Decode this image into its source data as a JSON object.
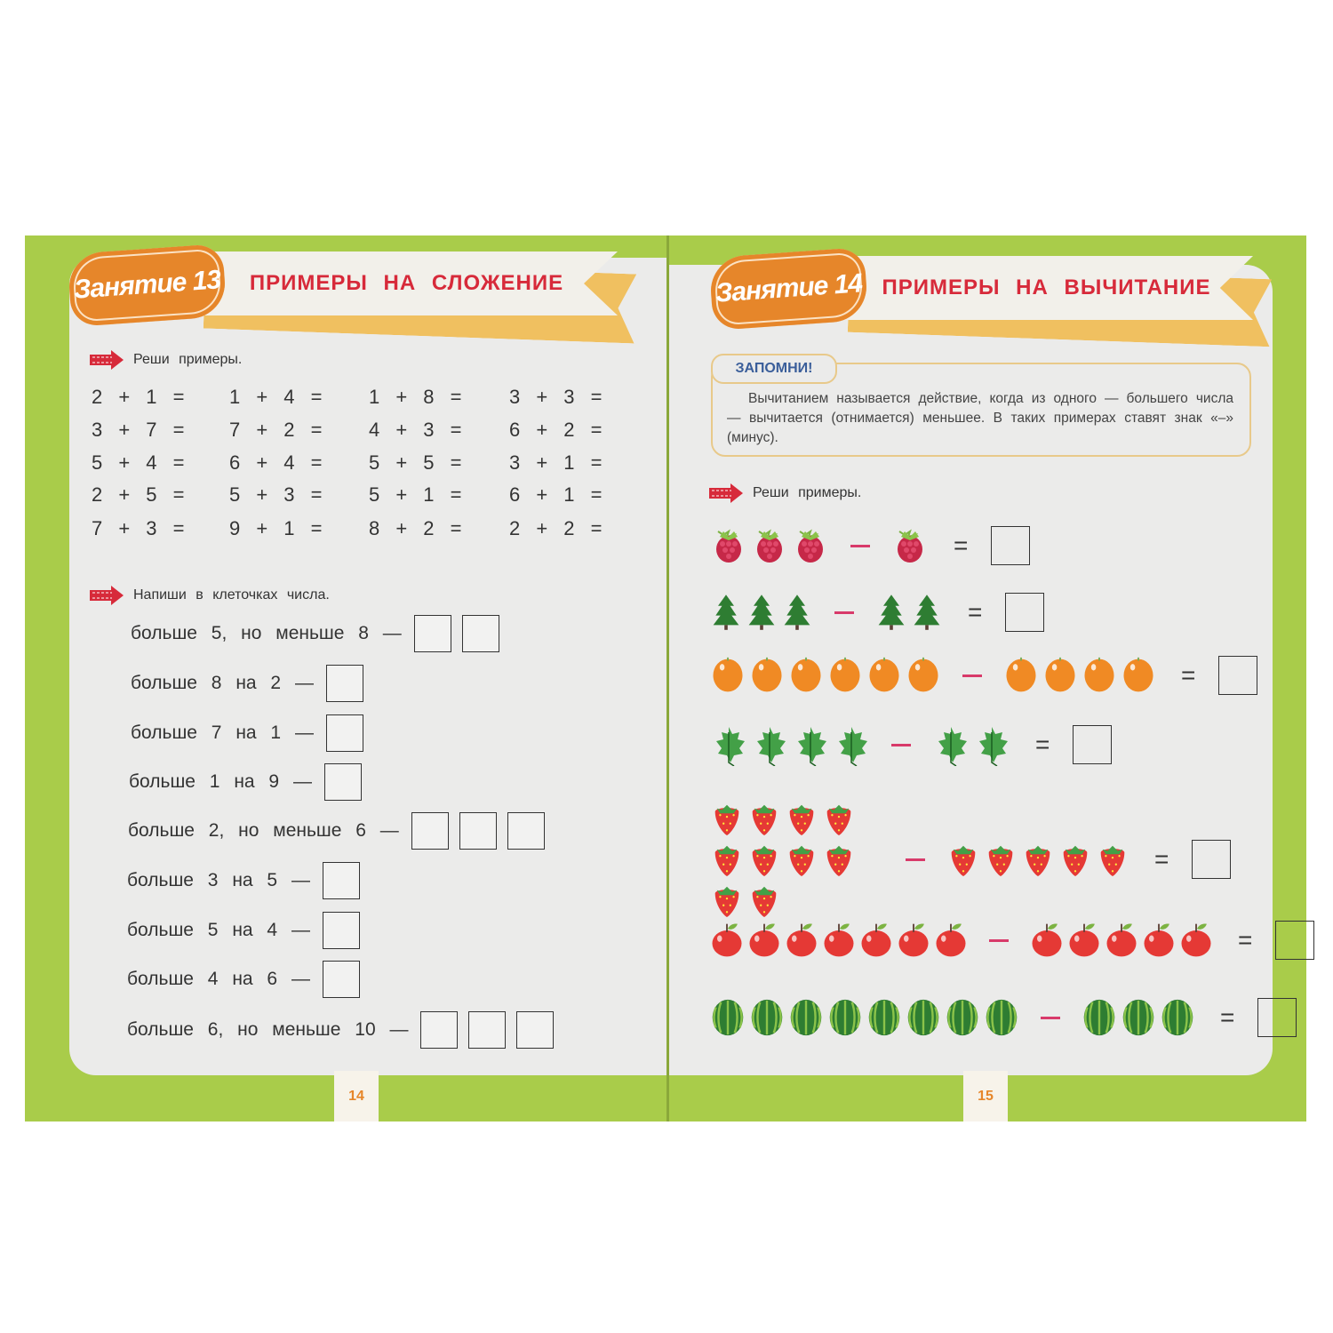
{
  "left_page": {
    "lesson": "Занятие 13",
    "title": "ПРИМЕРЫ НА СЛОЖЕНИЕ",
    "task1": "Реши примеры.",
    "equations": [
      [
        "2 + 1 =",
        "3 + 7 =",
        "5 + 4 =",
        "2 + 5 =",
        "7 + 3 ="
      ],
      [
        "1 + 4 =",
        "7 + 2 =",
        "6 + 4 =",
        "5 + 3 =",
        "9 + 1 ="
      ],
      [
        "1 + 8 =",
        "4 + 3 =",
        "5 + 5 =",
        "5 + 1 =",
        "8 + 2 ="
      ],
      [
        "3 + 3 =",
        "6 + 2 =",
        "3 + 1 =",
        "6 + 1 =",
        "2 + 2 ="
      ]
    ],
    "task2": "Напиши в клеточках числа.",
    "fill_rows": [
      {
        "text": "больше 5, но меньше 8 —",
        "boxes": 2
      },
      {
        "text": "больше 8 на 2 —",
        "boxes": 1
      },
      {
        "text": "больше 7 на 1 —",
        "boxes": 1
      },
      {
        "text": "больше 1 на 9 —",
        "boxes": 1
      },
      {
        "text": "больше 2, но меньше 6 —",
        "boxes": 3
      },
      {
        "text": "больше 3 на 5 —",
        "boxes": 1
      },
      {
        "text": "больше 5 на 4 —",
        "boxes": 1
      },
      {
        "text": "больше 4 на 6 —",
        "boxes": 1
      },
      {
        "text": "больше 6, но меньше 10 —",
        "boxes": 3
      }
    ],
    "page_number": "14"
  },
  "right_page": {
    "lesson": "Занятие 14",
    "title": "ПРИМЕРЫ НА ВЫЧИТАНИЕ",
    "remember_label": "ЗАПОМНИ!",
    "remember_text": "Вычитанием называется действие, когда из одного — большего числа — вычитается (отнимается) меньшее. В таких примерах ставят знак «–» (минус).",
    "task": "Реши примеры.",
    "equals_sign": "=",
    "subtraction_rows": [
      {
        "item": "raspberry",
        "left": 3,
        "right": 1
      },
      {
        "item": "fir-tree",
        "left": 3,
        "right": 2
      },
      {
        "item": "orange",
        "left": 6,
        "right": 4
      },
      {
        "item": "leaf",
        "left": 4,
        "right": 2
      },
      {
        "item": "strawberry",
        "left": 10,
        "right": 5
      },
      {
        "item": "apple",
        "left": 7,
        "right": 5
      },
      {
        "item": "watermelon",
        "left": 8,
        "right": 3
      }
    ],
    "page_number": "15"
  },
  "colors": {
    "page_border": "#a9cc4a",
    "badge": "#e6862a",
    "title": "#d72a3a",
    "minus": "#d83a6a",
    "remember_label": "#3a5e9a"
  }
}
